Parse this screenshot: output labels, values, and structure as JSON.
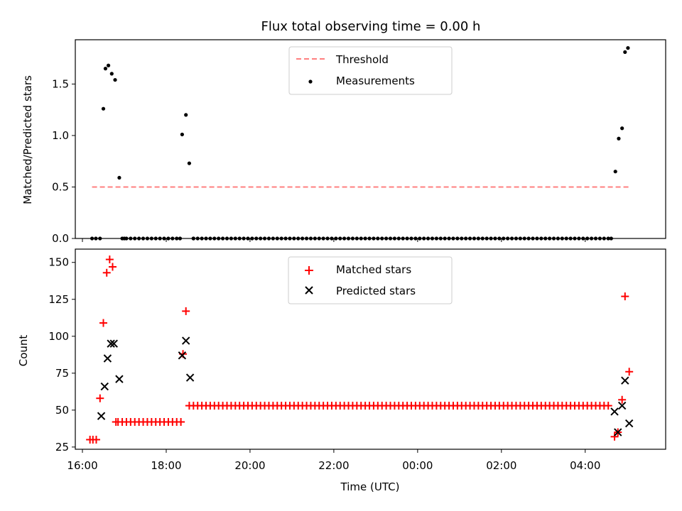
{
  "figure": {
    "title": "Flux total observing time = 0.00 h",
    "xlabel": "Time (UTC)"
  },
  "chart_data": [
    {
      "type": "scatter",
      "panel": "top",
      "title": "Flux total observing time = 0.00 h",
      "ylabel": "Matched/Predicted stars",
      "xlabel": "",
      "x_unit": "hours since 00:00 UTC of first night (ticks labelled HH:MM)",
      "xlim": [
        15.83,
        29.92
      ],
      "ylim": [
        0.0,
        1.93
      ],
      "yticks": [
        0.0,
        0.5,
        1.0,
        1.5
      ],
      "ytick_labels": [
        "0.0",
        "0.5",
        "1.0",
        "1.5"
      ],
      "grid": false,
      "legend": "top-center",
      "series": [
        {
          "name": "Threshold",
          "kind": "line",
          "style": "dashed",
          "color": "#ff7f7f",
          "x": [
            16.23,
            29.07
          ],
          "y": [
            0.5,
            0.5
          ]
        },
        {
          "name": "Measurements",
          "kind": "scatter",
          "marker": "dot",
          "color": "#000000",
          "x": [
            16.23,
            16.32,
            16.42,
            16.5,
            16.55,
            16.62,
            16.7,
            16.78,
            16.88,
            17.0,
            18.33,
            18.38,
            18.47,
            18.55,
            18.65,
            28.62,
            28.72,
            28.8,
            28.88,
            28.95,
            29.02
          ],
          "y": [
            0.0,
            0.0,
            0.0,
            1.26,
            1.65,
            1.68,
            1.6,
            1.54,
            0.59,
            0.0,
            0.0,
            1.01,
            1.2,
            0.73,
            0.0,
            0.0,
            0.65,
            0.97,
            1.07,
            1.81,
            1.85
          ]
        }
      ],
      "zero_run": {
        "x_start": 16.95,
        "x_end": 28.62,
        "step": 0.1,
        "y": 0.0
      }
    },
    {
      "type": "scatter",
      "panel": "bottom",
      "ylabel": "Count",
      "xlabel": "Time (UTC)",
      "xlim": [
        15.83,
        29.92
      ],
      "ylim": [
        23.5,
        159.0
      ],
      "yticks": [
        25,
        50,
        75,
        100,
        125,
        150
      ],
      "ytick_labels": [
        "25",
        "50",
        "75",
        "100",
        "125",
        "150"
      ],
      "xticks": [
        16,
        18,
        20,
        22,
        24,
        26,
        28
      ],
      "xtick_labels": [
        "16:00",
        "18:00",
        "20:00",
        "22:00",
        "00:00",
        "02:00",
        "04:00"
      ],
      "grid": false,
      "legend": "top-center",
      "series": [
        {
          "name": "Matched stars",
          "kind": "scatter",
          "marker": "plus",
          "color": "#ff0000",
          "x": [
            16.18,
            16.25,
            16.33,
            16.42,
            16.5,
            16.58,
            16.65,
            16.72,
            16.8,
            28.7,
            28.78,
            28.88,
            28.95,
            29.05
          ],
          "y": [
            30,
            30,
            30,
            58,
            109,
            143,
            152,
            147,
            42,
            32,
            35,
            57,
            127,
            76
          ],
          "plateaus": [
            {
              "x_start": 16.85,
              "x_end": 18.35,
              "step": 0.1,
              "y": 42
            },
            {
              "x_start": 18.55,
              "x_end": 28.62,
              "step": 0.1,
              "y": 53
            }
          ],
          "extra": [
            {
              "x": 18.4,
              "y": 88
            },
            {
              "x": 18.47,
              "y": 117
            }
          ]
        },
        {
          "name": "Predicted stars",
          "kind": "scatter",
          "marker": "x",
          "color": "#000000",
          "x": [
            16.45,
            16.53,
            16.6,
            16.68,
            16.75,
            16.88,
            18.38,
            18.47,
            18.57,
            28.7,
            28.78,
            28.88,
            28.95,
            29.05
          ],
          "y": [
            46,
            66,
            85,
            95,
            95,
            71,
            87,
            97,
            72,
            49,
            35,
            53,
            70,
            41
          ]
        }
      ]
    }
  ]
}
